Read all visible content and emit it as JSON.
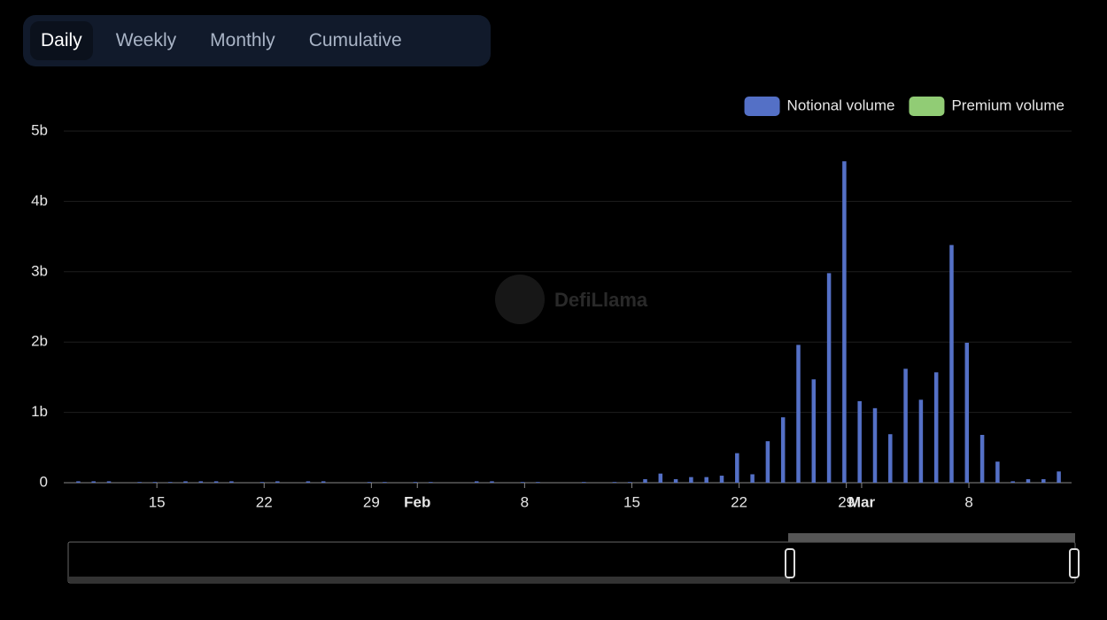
{
  "tabs": [
    "Daily",
    "Weekly",
    "Monthly",
    "Cumulative"
  ],
  "active_tab": 0,
  "watermark": "DefiLlama",
  "chart_data": {
    "type": "bar",
    "categories": [
      null,
      null,
      null,
      null,
      null,
      "15",
      null,
      null,
      null,
      null,
      null,
      null,
      "22",
      null,
      null,
      null,
      null,
      null,
      null,
      "29",
      null,
      null,
      "Feb",
      null,
      null,
      null,
      null,
      null,
      null,
      "8",
      null,
      null,
      null,
      null,
      null,
      null,
      "15",
      null,
      null,
      null,
      null,
      null,
      null,
      "22",
      null,
      null,
      null,
      null,
      null,
      null,
      "29",
      "Mar",
      null,
      null,
      null,
      null,
      null,
      null,
      "8",
      null,
      null,
      null,
      null,
      null,
      null
    ],
    "series": [
      {
        "name": "Notional volume",
        "color": "#5470c6",
        "values": [
          0.02,
          0.02,
          0.02,
          0,
          0.01,
          0.01,
          0.01,
          0.02,
          0.02,
          0.02,
          0.02,
          0,
          0.01,
          0.02,
          0,
          0.02,
          0.02,
          0,
          0,
          0.01,
          0.01,
          0,
          0.01,
          0.01,
          0,
          0,
          0.02,
          0.02,
          0,
          0.01,
          0.01,
          0,
          0,
          0.01,
          0,
          0.01,
          0.01,
          0.05,
          0.13,
          0.05,
          0.08,
          0.08,
          0.1,
          0.42,
          0.12,
          0.59,
          0.93,
          1.96,
          1.47,
          2.98,
          4.57,
          1.16,
          1.06,
          0.69,
          1.62,
          1.18,
          1.57,
          3.38,
          1.99,
          0.68,
          0.3,
          0.02,
          0.05,
          0.05,
          0.16
        ]
      },
      {
        "name": "Premium volume",
        "color": "#91cc75",
        "values": [
          0,
          0,
          0,
          0,
          0,
          0,
          0,
          0,
          0,
          0,
          0,
          0,
          0,
          0,
          0,
          0,
          0,
          0,
          0,
          0,
          0,
          0,
          0,
          0,
          0,
          0,
          0,
          0,
          0,
          0,
          0,
          0,
          0,
          0,
          0,
          0,
          0,
          0,
          0,
          0,
          0,
          0,
          0,
          0,
          0,
          0,
          0,
          0,
          0,
          0,
          0,
          0,
          0,
          0,
          0,
          0,
          0,
          0,
          0,
          0,
          0,
          0,
          0,
          0,
          0
        ]
      }
    ],
    "ylim": [
      0,
      5
    ],
    "yticks": [
      0,
      {
        "value": 1,
        "label": "1b"
      },
      {
        "value": 2,
        "label": "2b"
      },
      {
        "value": 3,
        "label": "3b"
      },
      {
        "value": 4,
        "label": "4b"
      },
      {
        "value": 5,
        "label": "5b"
      }
    ],
    "grid": true,
    "legend": "top-right"
  }
}
